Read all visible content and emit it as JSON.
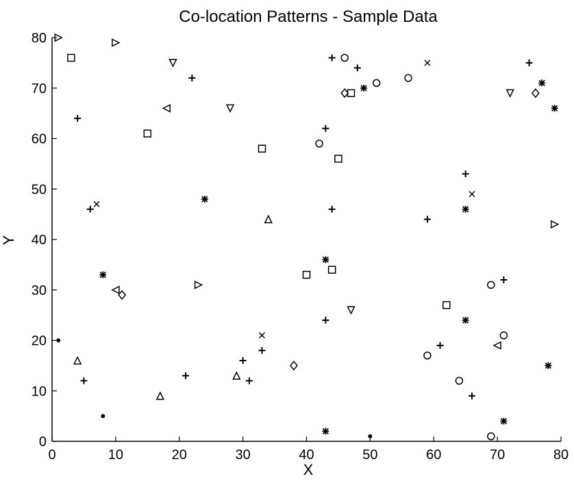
{
  "chart_data": {
    "type": "scatter",
    "title": "Co-location Patterns - Sample Data",
    "xlabel": "X",
    "ylabel": "Y",
    "xlim": [
      0,
      80
    ],
    "ylim": [
      0,
      80
    ],
    "xticks": [
      "0",
      "10",
      "20",
      "30",
      "40",
      "50",
      "60",
      "70",
      "80"
    ],
    "yticks": [
      "0",
      "10",
      "20",
      "30",
      "40",
      "50",
      "60",
      "70",
      "80"
    ],
    "grid": false,
    "legend": "none",
    "colors": {
      "background": "#ffffff",
      "ink": "#000000"
    },
    "points": [
      {
        "x": 1,
        "y": 80,
        "marker": "triangle-right"
      },
      {
        "x": 10,
        "y": 79,
        "marker": "triangle-right"
      },
      {
        "x": 3,
        "y": 76,
        "marker": "square"
      },
      {
        "x": 19,
        "y": 75,
        "marker": "triangle-down"
      },
      {
        "x": 22,
        "y": 72,
        "marker": "plus"
      },
      {
        "x": 4,
        "y": 64,
        "marker": "plus"
      },
      {
        "x": 18,
        "y": 66,
        "marker": "triangle-left"
      },
      {
        "x": 28,
        "y": 66,
        "marker": "triangle-down"
      },
      {
        "x": 15,
        "y": 61,
        "marker": "square"
      },
      {
        "x": 33,
        "y": 58,
        "marker": "square"
      },
      {
        "x": 24,
        "y": 48,
        "marker": "star"
      },
      {
        "x": 6,
        "y": 46,
        "marker": "plus"
      },
      {
        "x": 7,
        "y": 47,
        "marker": "x"
      },
      {
        "x": 34,
        "y": 44,
        "marker": "triangle-up"
      },
      {
        "x": 8,
        "y": 33,
        "marker": "star"
      },
      {
        "x": 10,
        "y": 30,
        "marker": "triangle-left"
      },
      {
        "x": 11,
        "y": 29,
        "marker": "diamond"
      },
      {
        "x": 23,
        "y": 31,
        "marker": "triangle-right"
      },
      {
        "x": 1,
        "y": 20,
        "marker": "point"
      },
      {
        "x": 4,
        "y": 16,
        "marker": "triangle-up"
      },
      {
        "x": 5,
        "y": 12,
        "marker": "plus"
      },
      {
        "x": 8,
        "y": 5,
        "marker": "point"
      },
      {
        "x": 17,
        "y": 9,
        "marker": "triangle-up"
      },
      {
        "x": 21,
        "y": 13,
        "marker": "plus"
      },
      {
        "x": 29,
        "y": 13,
        "marker": "triangle-up"
      },
      {
        "x": 30,
        "y": 16,
        "marker": "plus"
      },
      {
        "x": 31,
        "y": 12,
        "marker": "plus"
      },
      {
        "x": 33,
        "y": 18,
        "marker": "plus"
      },
      {
        "x": 33,
        "y": 21,
        "marker": "x"
      },
      {
        "x": 38,
        "y": 15,
        "marker": "diamond"
      },
      {
        "x": 40,
        "y": 33,
        "marker": "square"
      },
      {
        "x": 43,
        "y": 36,
        "marker": "star"
      },
      {
        "x": 44,
        "y": 34,
        "marker": "square"
      },
      {
        "x": 43,
        "y": 24,
        "marker": "plus"
      },
      {
        "x": 47,
        "y": 26,
        "marker": "triangle-down"
      },
      {
        "x": 43,
        "y": 2,
        "marker": "star"
      },
      {
        "x": 50,
        "y": 1,
        "marker": "point"
      },
      {
        "x": 44,
        "y": 76,
        "marker": "plus"
      },
      {
        "x": 46,
        "y": 76,
        "marker": "circle"
      },
      {
        "x": 48,
        "y": 74,
        "marker": "plus"
      },
      {
        "x": 46,
        "y": 69,
        "marker": "diamond"
      },
      {
        "x": 47,
        "y": 69,
        "marker": "square"
      },
      {
        "x": 49,
        "y": 70,
        "marker": "star"
      },
      {
        "x": 51,
        "y": 71,
        "marker": "circle"
      },
      {
        "x": 56,
        "y": 72,
        "marker": "circle"
      },
      {
        "x": 59,
        "y": 75,
        "marker": "x"
      },
      {
        "x": 43,
        "y": 62,
        "marker": "plus"
      },
      {
        "x": 42,
        "y": 59,
        "marker": "circle"
      },
      {
        "x": 45,
        "y": 56,
        "marker": "square"
      },
      {
        "x": 44,
        "y": 46,
        "marker": "plus"
      },
      {
        "x": 59,
        "y": 44,
        "marker": "plus"
      },
      {
        "x": 65,
        "y": 53,
        "marker": "plus"
      },
      {
        "x": 66,
        "y": 49,
        "marker": "x"
      },
      {
        "x": 65,
        "y": 46,
        "marker": "star"
      },
      {
        "x": 62,
        "y": 27,
        "marker": "square"
      },
      {
        "x": 65,
        "y": 24,
        "marker": "star"
      },
      {
        "x": 59,
        "y": 17,
        "marker": "circle"
      },
      {
        "x": 61,
        "y": 19,
        "marker": "plus"
      },
      {
        "x": 64,
        "y": 12,
        "marker": "circle"
      },
      {
        "x": 66,
        "y": 9,
        "marker": "plus"
      },
      {
        "x": 69,
        "y": 31,
        "marker": "circle"
      },
      {
        "x": 71,
        "y": 32,
        "marker": "plus"
      },
      {
        "x": 70,
        "y": 19,
        "marker": "triangle-left"
      },
      {
        "x": 71,
        "y": 21,
        "marker": "circle"
      },
      {
        "x": 69,
        "y": 1,
        "marker": "circle"
      },
      {
        "x": 71,
        "y": 4,
        "marker": "star"
      },
      {
        "x": 78,
        "y": 15,
        "marker": "star"
      },
      {
        "x": 75,
        "y": 75,
        "marker": "plus"
      },
      {
        "x": 77,
        "y": 71,
        "marker": "star"
      },
      {
        "x": 76,
        "y": 69,
        "marker": "diamond"
      },
      {
        "x": 72,
        "y": 69,
        "marker": "triangle-down"
      },
      {
        "x": 79,
        "y": 66,
        "marker": "star"
      },
      {
        "x": 79,
        "y": 43,
        "marker": "triangle-right"
      }
    ]
  }
}
